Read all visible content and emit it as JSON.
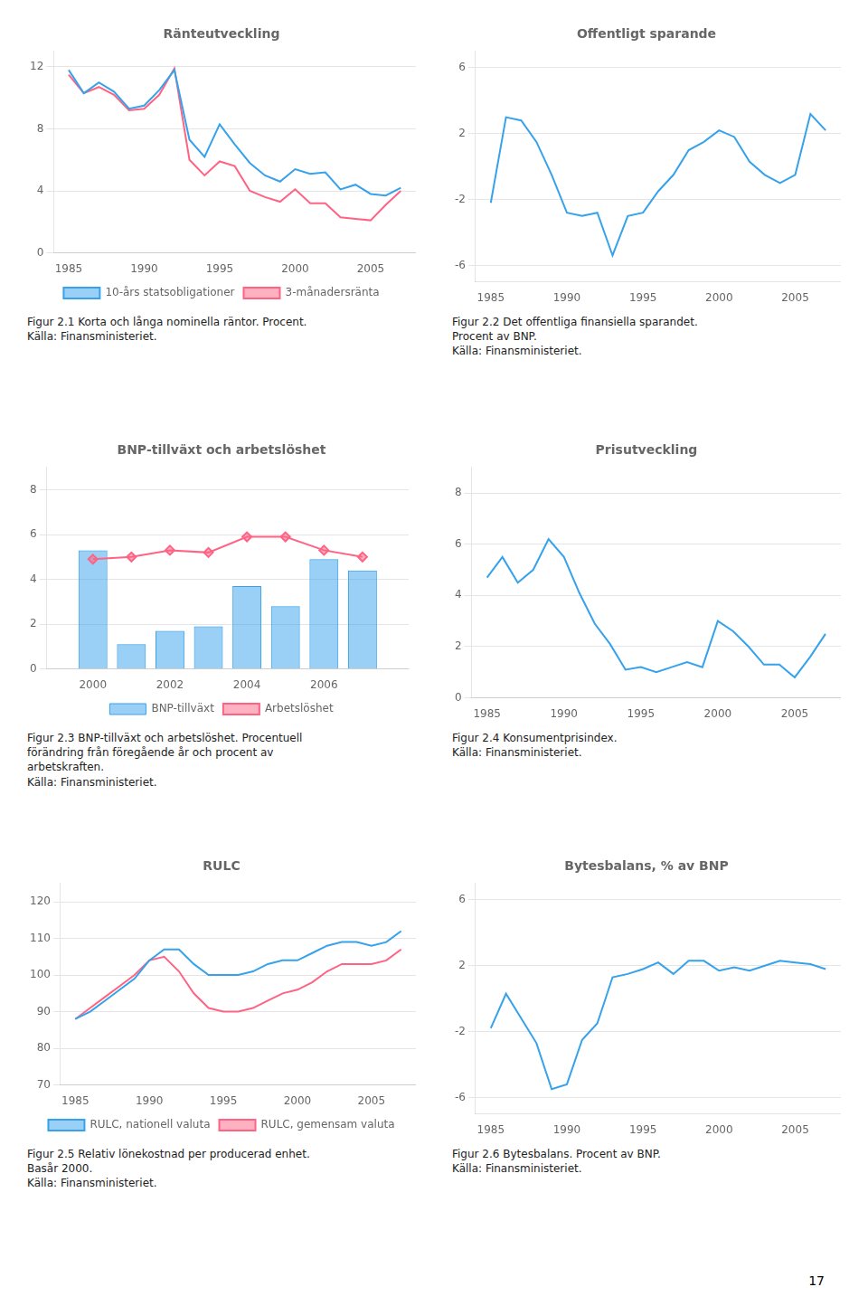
{
  "page_number": "17",
  "chart_data": [
    {
      "type": "line",
      "title": "Ränteutveckling",
      "x": [
        1985,
        1986,
        1987,
        1988,
        1989,
        1990,
        1991,
        1992,
        1993,
        1994,
        1995,
        1996,
        1997,
        1998,
        1999,
        2000,
        2001,
        2002,
        2003,
        2004,
        2005,
        2006,
        2007
      ],
      "series": [
        {
          "name": "10-års statsobligationer",
          "values": [
            11.8,
            10.3,
            11.0,
            10.4,
            9.3,
            9.5,
            10.5,
            11.8,
            7.3,
            6.2,
            8.3,
            7.0,
            5.8,
            5.0,
            4.6,
            5.4,
            5.1,
            5.2,
            4.1,
            4.4,
            3.8,
            3.7,
            4.2
          ]
        },
        {
          "name": "3-månadersränta",
          "values": [
            11.5,
            10.3,
            10.7,
            10.2,
            9.2,
            9.3,
            10.2,
            11.9,
            6.0,
            5.0,
            5.9,
            5.6,
            4.0,
            3.6,
            3.3,
            4.1,
            3.2,
            3.2,
            2.3,
            2.2,
            2.1,
            3.1,
            4.0
          ]
        }
      ],
      "xlim": [
        1984,
        2008
      ],
      "xticks": [
        1985,
        1990,
        1995,
        2000,
        2005
      ],
      "ylim": [
        0,
        13
      ],
      "yticks": [
        0,
        4,
        8,
        12
      ],
      "grid": "y",
      "legend": "bottom",
      "annotations": [
        "Figur 2.1 Korta och långa nominella räntor. Procent.\nKälla: Finansministeriet."
      ]
    },
    {
      "type": "line",
      "title": "Offentligt sparande",
      "x": [
        1985,
        1986,
        1987,
        1988,
        1989,
        1990,
        1991,
        1992,
        1993,
        1994,
        1995,
        1996,
        1997,
        1998,
        1999,
        2000,
        2001,
        2002,
        2003,
        2004,
        2005,
        2006,
        2007
      ],
      "values": [
        -2.2,
        3.0,
        2.8,
        1.5,
        -0.5,
        -2.8,
        -3.0,
        -2.8,
        -5.4,
        -3.0,
        -2.8,
        -1.5,
        -0.5,
        1.0,
        1.5,
        2.2,
        1.8,
        0.3,
        -0.5,
        -1.0,
        -0.5,
        3.2,
        2.2
      ],
      "xlim": [
        1984,
        2008
      ],
      "xticks": [
        1985,
        1990,
        1995,
        2000,
        2005
      ],
      "ylim": [
        -7,
        7
      ],
      "yticks": [
        -6,
        -2,
        2,
        6
      ],
      "grid": "y",
      "annotations": [
        "Figur 2.2 Det offentliga finansiella sparandet.\nProcent av BNP.\nKälla: Finansministeriet."
      ]
    },
    {
      "type": "bar",
      "title": "BNP-tillväxt och arbetslöshet",
      "x": [
        2000,
        2001,
        2002,
        2003,
        2004,
        2005,
        2006,
        2007
      ],
      "series": [
        {
          "name": "BNP-tillväxt",
          "values": [
            5.3,
            1.1,
            1.7,
            1.9,
            3.7,
            2.8,
            4.9,
            4.4
          ]
        },
        {
          "name": "Arbetslöshet",
          "type": "line",
          "marker": "diamond",
          "values": [
            4.9,
            5.0,
            5.3,
            5.2,
            5.9,
            5.9,
            5.3,
            5.0
          ]
        }
      ],
      "xlim": [
        1998.8,
        2008.2
      ],
      "xticks": [
        2000,
        2002,
        2004,
        2006
      ],
      "ylim": [
        0,
        9
      ],
      "yticks": [
        0,
        2,
        4,
        6,
        8
      ],
      "grid": "y",
      "legend": "bottom",
      "annotations": [
        "Figur 2.3 BNP-tillväxt och arbetslöshet. Procentuell\nförändring från föregående år och procent av\narbetskraften.\nKälla: Finansministeriet."
      ]
    },
    {
      "type": "line",
      "title": "Prisutveckling",
      "x": [
        1985,
        1986,
        1987,
        1988,
        1989,
        1990,
        1991,
        1992,
        1993,
        1994,
        1995,
        1996,
        1997,
        1998,
        1999,
        2000,
        2001,
        2002,
        2003,
        2004,
        2005,
        2006,
        2007
      ],
      "values": [
        4.7,
        5.5,
        4.5,
        5.0,
        6.2,
        5.5,
        4.1,
        2.9,
        2.1,
        1.1,
        1.2,
        1.0,
        1.2,
        1.4,
        1.2,
        3.0,
        2.6,
        2.0,
        1.3,
        1.3,
        0.8,
        1.6,
        2.5
      ],
      "xlim": [
        1984,
        2008
      ],
      "xticks": [
        1985,
        1990,
        1995,
        2000,
        2005
      ],
      "ylim": [
        0,
        9
      ],
      "yticks": [
        0,
        2,
        4,
        6,
        8
      ],
      "grid": "y",
      "annotations": [
        "Figur 2.4 Konsumentprisindex.\nKälla: Finansministeriet."
      ]
    },
    {
      "type": "line",
      "title": "RULC",
      "x": [
        1985,
        1986,
        1987,
        1988,
        1989,
        1990,
        1991,
        1992,
        1993,
        1994,
        1995,
        1996,
        1997,
        1998,
        1999,
        2000,
        2001,
        2002,
        2003,
        2004,
        2005,
        2006,
        2007
      ],
      "series": [
        {
          "name": "RULC, nationell valuta",
          "values": [
            88,
            90,
            93,
            96,
            99,
            104,
            107,
            107,
            103,
            100,
            100,
            100,
            101,
            103,
            104,
            104,
            106,
            108,
            109,
            109,
            108,
            109,
            112
          ]
        },
        {
          "name": "RULC, gemensam valuta",
          "values": [
            88,
            91,
            94,
            97,
            100,
            104,
            105,
            101,
            95,
            91,
            90,
            90,
            91,
            93,
            95,
            96,
            98,
            101,
            103,
            103,
            103,
            104,
            107
          ]
        }
      ],
      "xlim": [
        1984,
        2008
      ],
      "xticks": [
        1985,
        1990,
        1995,
        2000,
        2005
      ],
      "ylim": [
        70,
        125
      ],
      "yticks": [
        70,
        80,
        90,
        100,
        110,
        120
      ],
      "grid": "y",
      "legend": "bottom",
      "annotations": [
        "Figur 2.5 Relativ lönekostnad per producerad enhet.\nBasår 2000.\nKälla: Finansministeriet."
      ]
    },
    {
      "type": "line",
      "title": "Bytesbalans, % av BNP",
      "x": [
        1985,
        1986,
        1987,
        1988,
        1989,
        1990,
        1991,
        1992,
        1993,
        1994,
        1995,
        1996,
        1997,
        1998,
        1999,
        2000,
        2001,
        2002,
        2003,
        2004,
        2005,
        2006,
        2007
      ],
      "values": [
        -1.8,
        0.3,
        -1.2,
        -2.7,
        -5.5,
        -5.2,
        -2.5,
        -1.5,
        1.3,
        1.5,
        1.8,
        2.2,
        1.5,
        2.3,
        2.3,
        1.7,
        1.9,
        1.7,
        2.0,
        2.3,
        2.2,
        2.1,
        1.8
      ],
      "xlim": [
        1984,
        2008
      ],
      "xticks": [
        1985,
        1990,
        1995,
        2000,
        2005
      ],
      "ylim": [
        -7,
        7
      ],
      "yticks": [
        -6,
        -2,
        2,
        6
      ],
      "grid": "y",
      "annotations": [
        "Figur 2.6 Bytesbalans. Procent av BNP.\nKälla: Finansministeriet."
      ]
    }
  ]
}
